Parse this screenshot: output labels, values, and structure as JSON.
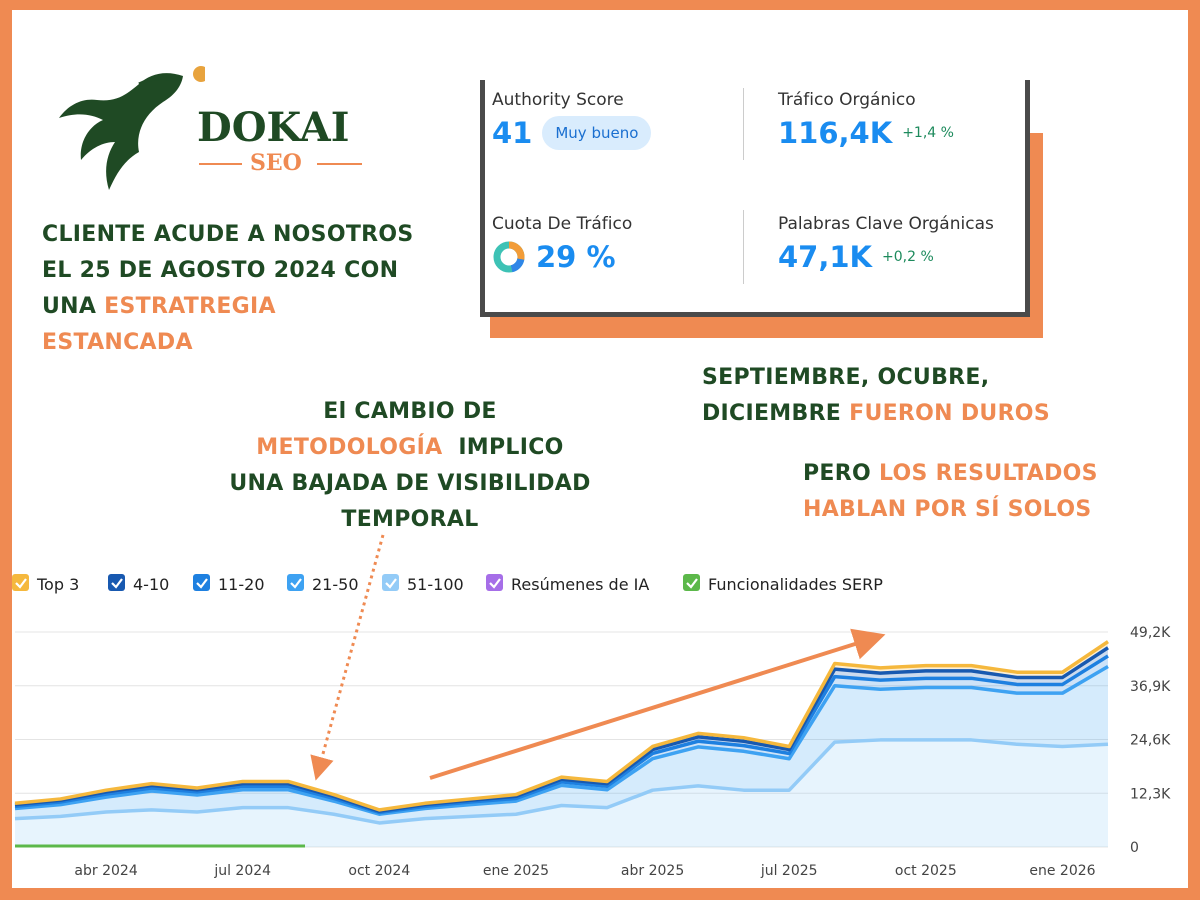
{
  "logo": {
    "name": "DOKAI",
    "sub": "SEO"
  },
  "headline": [
    [
      {
        "text": "CLIENTE ACUDE A NOSOTROS",
        "highlight": false
      }
    ],
    [
      {
        "text": "EL 25 DE AGOSTO 2024 CON",
        "highlight": false
      }
    ],
    [
      {
        "text": "UNA ",
        "highlight": false
      },
      {
        "text": "ESTRATREGIA",
        "highlight": true
      }
    ],
    [
      {
        "text": "ESTANCADA",
        "highlight": true
      }
    ]
  ],
  "metrics": [
    {
      "label": "Authority Score",
      "value": "41",
      "badge": "Muy bueno"
    },
    {
      "label": "Tráfico Orgánico",
      "value": "116,4K",
      "change": "+1,4 %"
    },
    {
      "label": "Cuota De Tráfico",
      "value": "29 %"
    },
    {
      "label": "Palabras Clave Orgánicas",
      "value": "47,1K",
      "change": "+0,2 %"
    }
  ],
  "annotation_change": [
    [
      {
        "text": "El CAMBIO DE",
        "highlight": false
      }
    ],
    [
      {
        "text": "METODOLOGÍA",
        "highlight": true
      },
      {
        "text": "  IMPLICO",
        "highlight": false
      }
    ],
    [
      {
        "text": "UNA BAJADA DE VISIBILIDAD",
        "highlight": false
      }
    ],
    [
      {
        "text": "TEMPORAL",
        "highlight": false
      }
    ]
  ],
  "annotation_hard": [
    [
      {
        "text": "SEPTIEMBRE, OCUBRE,",
        "highlight": false
      }
    ],
    [
      {
        "text": "DICIEMBRE ",
        "highlight": false
      },
      {
        "text": "FUERON DUROS",
        "highlight": true
      }
    ]
  ],
  "annotation_results": [
    [
      {
        "text": "PERO ",
        "highlight": false
      },
      {
        "text": "LOS RESULTADOS",
        "highlight": true
      }
    ],
    [
      {
        "text": "HABLAN POR SÍ SOLOS",
        "highlight": true
      }
    ]
  ],
  "chart_data": {
    "type": "stacked_area",
    "categories": [
      null,
      null,
      "abr 2024",
      null,
      null,
      "jul 2024",
      null,
      null,
      "oct 2024",
      null,
      null,
      "ene 2025",
      null,
      null,
      "abr 2025",
      null,
      null,
      "jul 2025",
      null,
      null,
      "oct 2025",
      null,
      null,
      "ene 2026",
      null
    ],
    "series": [
      {
        "name": "Top 3",
        "color": "#f5b83d",
        "values": [
          300,
          300,
          400,
          400,
          400,
          500,
          500,
          400,
          300,
          300,
          300,
          400,
          500,
          500,
          700,
          800,
          800,
          700,
          1300,
          1200,
          1200,
          1200,
          1200,
          1200,
          1400
        ]
      },
      {
        "name": "4-10",
        "color": "#1859b0",
        "values": [
          400,
          400,
          500,
          600,
          500,
          600,
          600,
          500,
          300,
          400,
          400,
          500,
          600,
          600,
          900,
          1000,
          1000,
          900,
          1700,
          1600,
          1700,
          1700,
          1600,
          1600,
          1900
        ]
      },
      {
        "name": "11-20",
        "color": "#1e80e0",
        "values": [
          500,
          600,
          700,
          700,
          700,
          800,
          800,
          600,
          400,
          500,
          600,
          600,
          800,
          800,
          1200,
          1300,
          1300,
          1200,
          2100,
          2100,
          2100,
          2100,
          2000,
          2000,
          2400
        ]
      },
      {
        "name": "21-50",
        "color": "#3ea2f2",
        "values": [
          2300,
          2700,
          3400,
          4300,
          3900,
          4100,
          4100,
          3000,
          2000,
          2300,
          2700,
          3000,
          4600,
          4100,
          7200,
          8900,
          8900,
          7200,
          12900,
          11600,
          12000,
          12000,
          11700,
          12200,
          17800
        ]
      },
      {
        "name": "51-100",
        "color": "#93cbf7",
        "values": [
          6500,
          7000,
          8000,
          8500,
          8000,
          9000,
          9000,
          7500,
          5500,
          6500,
          7000,
          7500,
          9500,
          9000,
          13000,
          14000,
          13000,
          13000,
          24000,
          24500,
          24500,
          24500,
          23500,
          23000,
          23500
        ]
      }
    ],
    "extra_legend": [
      {
        "name": "Resúmenes de IA",
        "color": "#a66ee8"
      },
      {
        "name": "Funcionalidades SERP",
        "color": "#5cb84a"
      }
    ],
    "ylim": [
      0,
      49200
    ],
    "yticks": [
      0,
      {
        "value": 12300,
        "label": "12,3K"
      },
      {
        "value": 24600,
        "label": "24,6K"
      },
      {
        "value": 36900,
        "label": "36,9K"
      },
      {
        "value": 49200,
        "label": "49,2K"
      }
    ],
    "grid": true
  }
}
